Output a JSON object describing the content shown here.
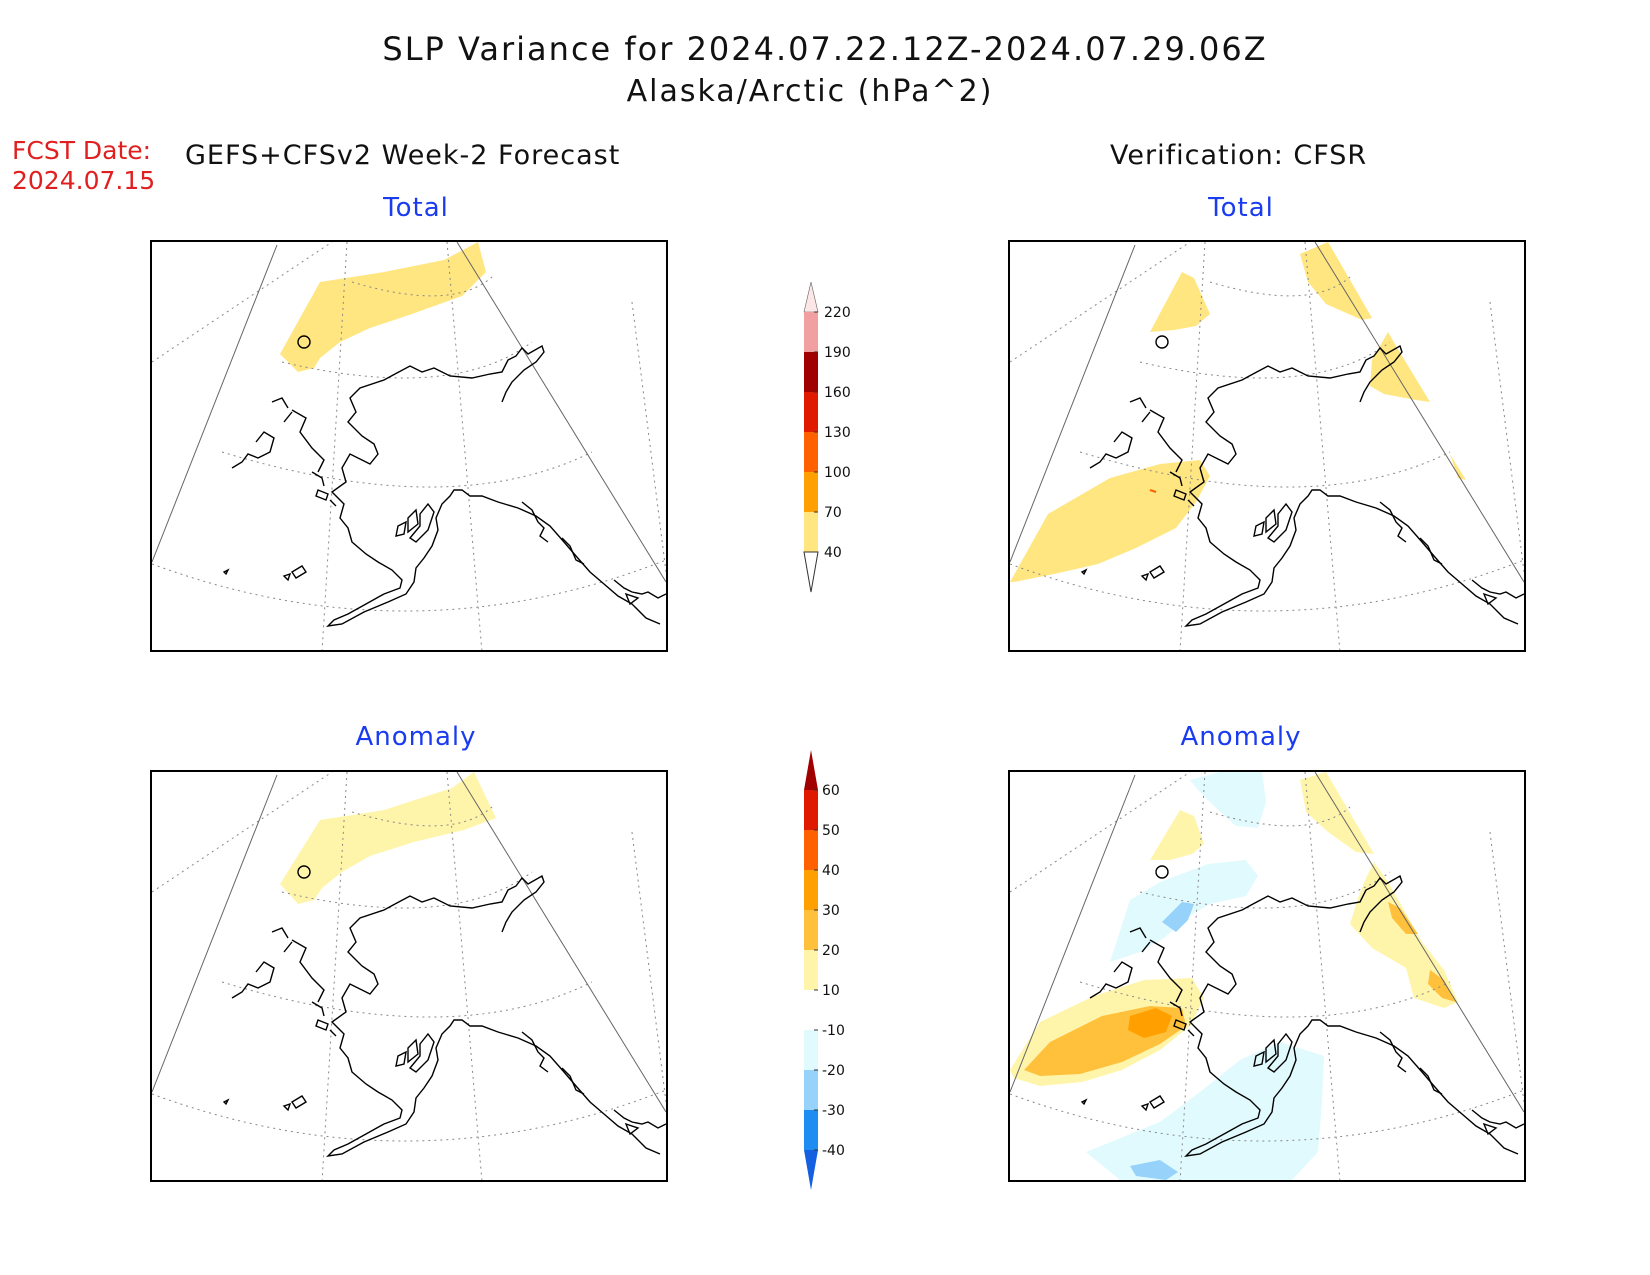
{
  "header": {
    "title": "SLP Variance for 2024.07.22.12Z-2024.07.29.06Z",
    "subtitle": "Alaska/Arctic (hPa^2)",
    "fcst_label": "FCST Date:",
    "fcst_date": "2024.07.15"
  },
  "columns": {
    "left": "GEFS+CFSv2 Week-2 Forecast",
    "right": "Verification: CFSR"
  },
  "panels": {
    "forecast_total": "Total",
    "verification_total": "Total",
    "forecast_anomaly": "Anomaly",
    "verification_anomaly": "Anomaly"
  },
  "total_scale": {
    "levels": [
      "40",
      "70",
      "100",
      "130",
      "160",
      "190",
      "220"
    ],
    "colors": [
      "#ffe680",
      "#ffa000",
      "#ff6000",
      "#e01a00",
      "#a00000",
      "#f0a0a0",
      "#fde6e6"
    ]
  },
  "anomaly_scale": {
    "levels": [
      "-40",
      "-30",
      "-20",
      "-10",
      "10",
      "20",
      "30",
      "40",
      "50",
      "60"
    ],
    "colors": [
      "#1460e0",
      "#1e8cf0",
      "#96d2fa",
      "#e1fafe",
      "#ffffff",
      "#fff5aa",
      "#ffc03c",
      "#ffa000",
      "#ff6000",
      "#e01a00",
      "#a00000"
    ]
  },
  "map_colors": {
    "total_fill": "#ffe680",
    "anom_pos1": "#fff5aa",
    "anom_pos2": "#ffc03c",
    "anom_pos3": "#ffa000",
    "anom_neg1": "#e1fafe",
    "anom_neg2": "#96d2fa"
  }
}
